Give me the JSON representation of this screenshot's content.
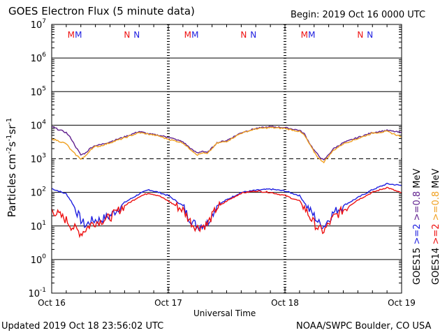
{
  "header": {
    "title": "GOES Electron Flux (5 minute data)",
    "begin": "Begin: 2019 Oct 16 0000 UTC"
  },
  "footer": {
    "updated": "Updated 2019 Oct 18 23:56:02 UTC",
    "credit": "NOAA/SWPC Boulder, CO USA"
  },
  "colors": {
    "goes15_2mev": "#2020e0",
    "goes14_2mev": "#ee1111",
    "goes15_08mev": "#60208e",
    "goes14_08mev": "#f0a020"
  },
  "chart_data": {
    "type": "line",
    "title": "GOES Electron Flux (5 minute data)",
    "xlabel": "Universal Time",
    "ylabel": "Particles cm-2s-1sr-1",
    "y_scale": "log",
    "ylim": [
      0.1,
      10000000
    ],
    "xlim": [
      "2019-10-16 00:00",
      "2019-10-19 00:00"
    ],
    "x_ticks": [
      "Oct 16",
      "Oct 17",
      "Oct 18",
      "Oct 19"
    ],
    "y_ticks": [
      {
        "base": "10",
        "exp": "7"
      },
      {
        "base": "10",
        "exp": "6"
      },
      {
        "base": "10",
        "exp": "5"
      },
      {
        "base": "10",
        "exp": "4"
      },
      {
        "base": "10",
        "exp": "3"
      },
      {
        "base": "10",
        "exp": "2"
      },
      {
        "base": "10",
        "exp": "1"
      },
      {
        "base": "10",
        "exp": "0"
      },
      {
        "base": "10",
        "exp": "-1"
      }
    ],
    "grid": "horizontal at each decade; dashed at 1000 (0.8 MeV alert threshold)",
    "marker_labels": [
      {
        "text": "M",
        "series": "GOES15",
        "time": "2019-10-16 05:30"
      },
      {
        "text": "M",
        "series": "GOES14",
        "time": "2019-10-16 04:00"
      },
      {
        "text": "N",
        "series": "GOES15",
        "time": "2019-10-16 17:30"
      },
      {
        "text": "N",
        "series": "GOES14",
        "time": "2019-10-16 15:30"
      },
      {
        "text": "M",
        "series": "GOES15",
        "time": "2019-10-17 05:30"
      },
      {
        "text": "M",
        "series": "GOES14",
        "time": "2019-10-17 04:00"
      },
      {
        "text": "N",
        "series": "GOES15",
        "time": "2019-10-17 17:30"
      },
      {
        "text": "N",
        "series": "GOES14",
        "time": "2019-10-17 15:30"
      },
      {
        "text": "M",
        "series": "GOES15",
        "time": "2019-10-18 05:30"
      },
      {
        "text": "M",
        "series": "GOES14",
        "time": "2019-10-18 04:00"
      },
      {
        "text": "N",
        "series": "GOES15",
        "time": "2019-10-18 17:30"
      },
      {
        "text": "N",
        "series": "GOES14",
        "time": "2019-10-18 15:30"
      }
    ],
    "legend": {
      "position": "right, vertical",
      "items": [
        {
          "sat": "GOES15",
          "energy": ">=2",
          "energy_label": ">=0.8",
          "unit": "MeV"
        },
        {
          "sat": "GOES14",
          "energy": ">=2",
          "energy_label": ">=0.8",
          "unit": "MeV"
        }
      ]
    },
    "x_hours": [
      0,
      3,
      4,
      5,
      6,
      7,
      8,
      9,
      10,
      12,
      15,
      18,
      20,
      22,
      24,
      27,
      28,
      29,
      30,
      31,
      32,
      34,
      36,
      39,
      42,
      45,
      48,
      51,
      52,
      53,
      54,
      55,
      56,
      58,
      60,
      63,
      66,
      69,
      72
    ],
    "series": [
      {
        "name": "GOES15 >=0.8 MeV",
        "values": [
          9000,
          6000,
          4000,
          2200,
          1300,
          1500,
          2100,
          2500,
          2600,
          3200,
          4500,
          6500,
          5500,
          5000,
          4400,
          3200,
          2400,
          1800,
          1500,
          1700,
          1500,
          3000,
          3500,
          6000,
          8000,
          9000,
          8500,
          7000,
          5500,
          3000,
          1800,
          1200,
          900,
          2000,
          3000,
          4300,
          6000,
          7000,
          6000
        ]
      },
      {
        "name": "GOES14 >=0.8 MeV",
        "values": [
          4000,
          2800,
          1800,
          1300,
          1000,
          1200,
          1900,
          2300,
          2400,
          3000,
          4200,
          6000,
          5400,
          4800,
          3800,
          3000,
          2200,
          1700,
          1300,
          1500,
          1400,
          2900,
          3300,
          5800,
          7800,
          8500,
          8000,
          6500,
          5000,
          2800,
          1600,
          1000,
          800,
          1800,
          2800,
          4000,
          5800,
          6500,
          4500
        ]
      },
      {
        "name": "GOES15 >=2 MeV",
        "values": [
          130,
          90,
          55,
          30,
          15,
          10,
          14,
          15,
          15,
          20,
          50,
          90,
          120,
          100,
          80,
          40,
          20,
          13,
          10,
          11,
          12,
          40,
          60,
          100,
          115,
          125,
          110,
          80,
          50,
          30,
          20,
          12,
          10,
          25,
          40,
          70,
          120,
          180,
          160
        ]
      },
      {
        "name": "GOES14 >=2 MeV",
        "values": [
          30,
          15,
          10,
          8,
          6,
          8,
          11,
          13,
          14,
          18,
          40,
          75,
          95,
          80,
          55,
          30,
          18,
          11,
          9,
          10,
          11,
          35,
          55,
          95,
          110,
          100,
          80,
          55,
          35,
          20,
          12,
          8,
          7,
          18,
          30,
          60,
          100,
          140,
          95
        ]
      }
    ]
  }
}
